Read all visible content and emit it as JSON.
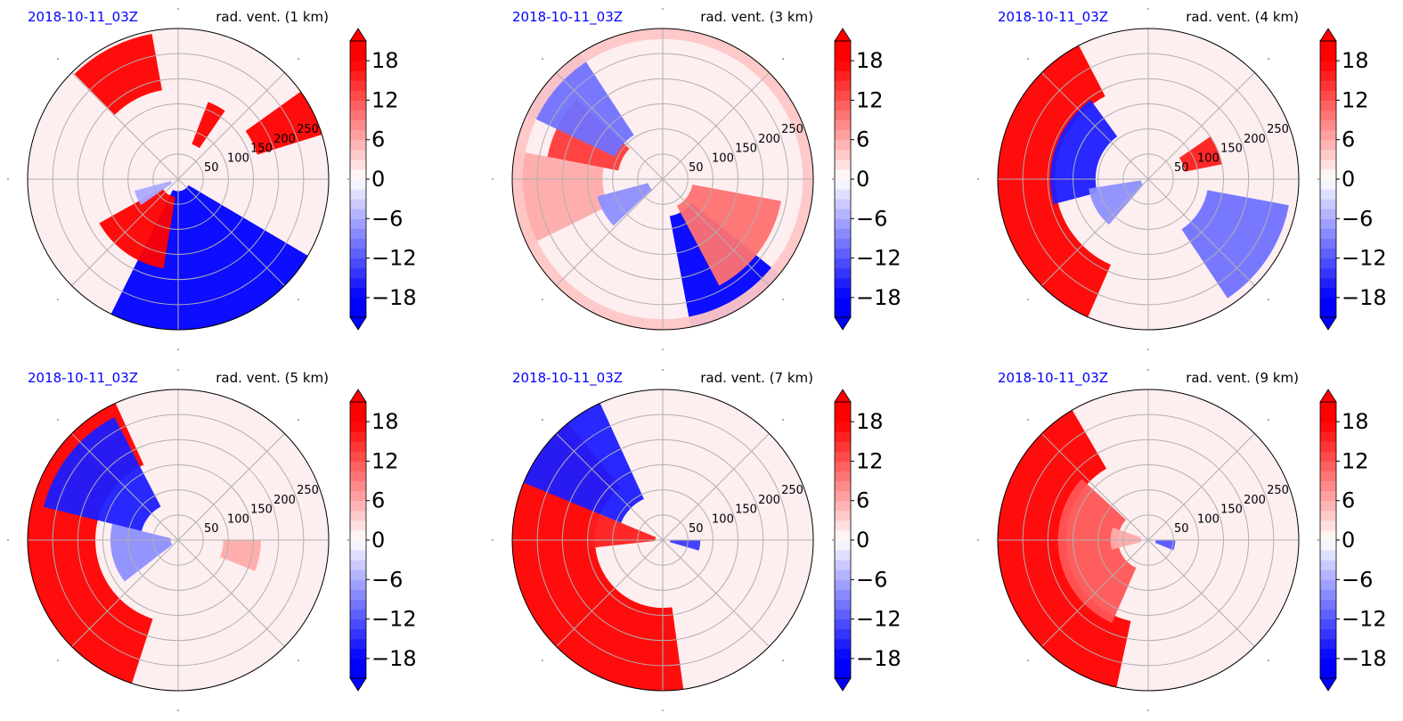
{
  "figure": {
    "colors": {
      "date_label": "#0000ff",
      "title": "#000000",
      "grid": "#b0b0b0",
      "positive": "#ff0000",
      "negative": "#0000ff",
      "neutral": "#ffffff"
    },
    "colorbar": {
      "ticks": [
        "18",
        "12",
        "6",
        "0",
        "−6",
        "−12",
        "−18"
      ],
      "levels": [
        -21,
        -19.5,
        -18,
        -16.5,
        -15,
        -13.5,
        -12,
        -10.5,
        -9,
        -7.5,
        -6,
        -4.5,
        -3,
        -1.5,
        0,
        1.5,
        3,
        4.5,
        6,
        7.5,
        9,
        10.5,
        12,
        13.5,
        15,
        16.5,
        18,
        19.5,
        21
      ],
      "extend": "both"
    }
  },
  "chart_data": [
    {
      "type": "polar-contourf",
      "date_label": "2018-10-11_03Z",
      "title": "rad. vent. (1 km)",
      "radial_ticks": [
        "50",
        "100",
        "150",
        "200",
        "250"
      ],
      "rmax": 300,
      "features": [
        {
          "v": 20,
          "th": [
            0.3,
            0.62
          ],
          "r": [
            0.55,
            1.0
          ]
        },
        {
          "v": 20,
          "th": [
            0.97,
            1.2
          ],
          "r": [
            0.25,
            0.55
          ]
        },
        {
          "v": 20,
          "th": [
            1.75,
            2.35
          ],
          "r": [
            0.6,
            0.98
          ]
        },
        {
          "v": -20,
          "th": [
            4.25,
            5.75
          ],
          "r": [
            0.08,
            1.0
          ]
        },
        {
          "v": 20,
          "th": [
            3.65,
            4.55
          ],
          "r": [
            0.12,
            0.6
          ]
        },
        {
          "v": -6,
          "th": [
            3.4,
            3.75
          ],
          "r": [
            0.05,
            0.3
          ]
        }
      ]
    },
    {
      "type": "polar-contourf",
      "date_label": "2018-10-11_03Z",
      "title": "rad. vent. (3 km)",
      "radial_ticks": [
        "50",
        "100",
        "150",
        "200",
        "250"
      ],
      "rmax": 300,
      "features": [
        {
          "v": 14,
          "th": [
            2.4,
            2.95
          ],
          "r": [
            0.3,
            0.78
          ]
        },
        {
          "v": -10,
          "th": [
            2.15,
            2.7
          ],
          "r": [
            0.35,
            1.0
          ]
        },
        {
          "v": 6,
          "th": [
            2.95,
            3.6
          ],
          "r": [
            0.4,
            1.0
          ]
        },
        {
          "v": -18,
          "th": [
            4.9,
            5.6
          ],
          "r": [
            0.25,
            1.0
          ]
        },
        {
          "v": 10,
          "th": [
            5.2,
            6.1
          ],
          "r": [
            0.2,
            0.8
          ]
        },
        {
          "v": -8,
          "th": [
            3.4,
            3.9
          ],
          "r": [
            0.1,
            0.45
          ]
        },
        {
          "v": 4,
          "th": [
            0.0,
            6.28
          ],
          "r": [
            0.93,
            1.0
          ]
        }
      ]
    },
    {
      "type": "polar-contourf",
      "date_label": "2018-10-11_03Z",
      "title": "rad. vent. (4 km)",
      "radial_ticks": [
        "50",
        "100",
        "150",
        "200",
        "250"
      ],
      "rmax": 300,
      "features": [
        {
          "v": 20,
          "th": [
            2.05,
            4.3
          ],
          "r": [
            0.62,
            1.0
          ]
        },
        {
          "v": -16,
          "th": [
            2.2,
            3.4
          ],
          "r": [
            0.35,
            0.65
          ]
        },
        {
          "v": 16,
          "th": [
            0.2,
            0.6
          ],
          "r": [
            0.25,
            0.5
          ]
        },
        {
          "v": -10,
          "th": [
            5.3,
            6.1
          ],
          "r": [
            0.4,
            0.95
          ]
        },
        {
          "v": -8,
          "th": [
            3.3,
            4.0
          ],
          "r": [
            0.05,
            0.4
          ]
        }
      ]
    },
    {
      "type": "polar-contourf",
      "date_label": "2018-10-11_03Z",
      "title": "rad. vent. (5 km)",
      "radial_ticks": [
        "50",
        "100",
        "150",
        "200",
        "250"
      ],
      "rmax": 300,
      "features": [
        {
          "v": 20,
          "th": [
            2.0,
            4.4
          ],
          "r": [
            0.55,
            1.0
          ]
        },
        {
          "v": -16,
          "th": [
            2.05,
            2.9
          ],
          "r": [
            0.25,
            0.92
          ]
        },
        {
          "v": -8,
          "th": [
            2.9,
            3.8
          ],
          "r": [
            0.05,
            0.45
          ]
        },
        {
          "v": 6,
          "th": [
            5.9,
            6.28
          ],
          "r": [
            0.3,
            0.55
          ]
        }
      ]
    },
    {
      "type": "polar-contourf",
      "date_label": "2018-10-11_03Z",
      "title": "rad. vent. (7 km)",
      "radial_ticks": [
        "50",
        "100",
        "150",
        "200",
        "250"
      ],
      "rmax": 300,
      "features": [
        {
          "v": 20,
          "th": [
            2.25,
            4.85
          ],
          "r": [
            0.45,
            1.0
          ]
        },
        {
          "v": -16,
          "th": [
            2.0,
            2.75
          ],
          "r": [
            0.3,
            1.0
          ]
        },
        {
          "v": 16,
          "th": [
            2.75,
            3.25
          ],
          "r": [
            0.05,
            0.5
          ]
        },
        {
          "v": -14,
          "th": [
            6.0,
            6.28
          ],
          "r": [
            0.05,
            0.25
          ]
        }
      ]
    },
    {
      "type": "polar-contourf",
      "date_label": "2018-10-11_03Z",
      "title": "rad. vent. (9 km)",
      "radial_ticks": [
        "50",
        "100",
        "150",
        "200",
        "250"
      ],
      "rmax": 300,
      "features": [
        {
          "v": 20,
          "th": [
            2.1,
            4.5
          ],
          "r": [
            0.55,
            1.0
          ]
        },
        {
          "v": 12,
          "th": [
            2.4,
            4.3
          ],
          "r": [
            0.2,
            0.6
          ]
        },
        {
          "v": 6,
          "th": [
            2.8,
            3.4
          ],
          "r": [
            0.05,
            0.25
          ]
        },
        {
          "v": -12,
          "th": [
            5.9,
            6.28
          ],
          "r": [
            0.05,
            0.18
          ]
        }
      ]
    }
  ]
}
